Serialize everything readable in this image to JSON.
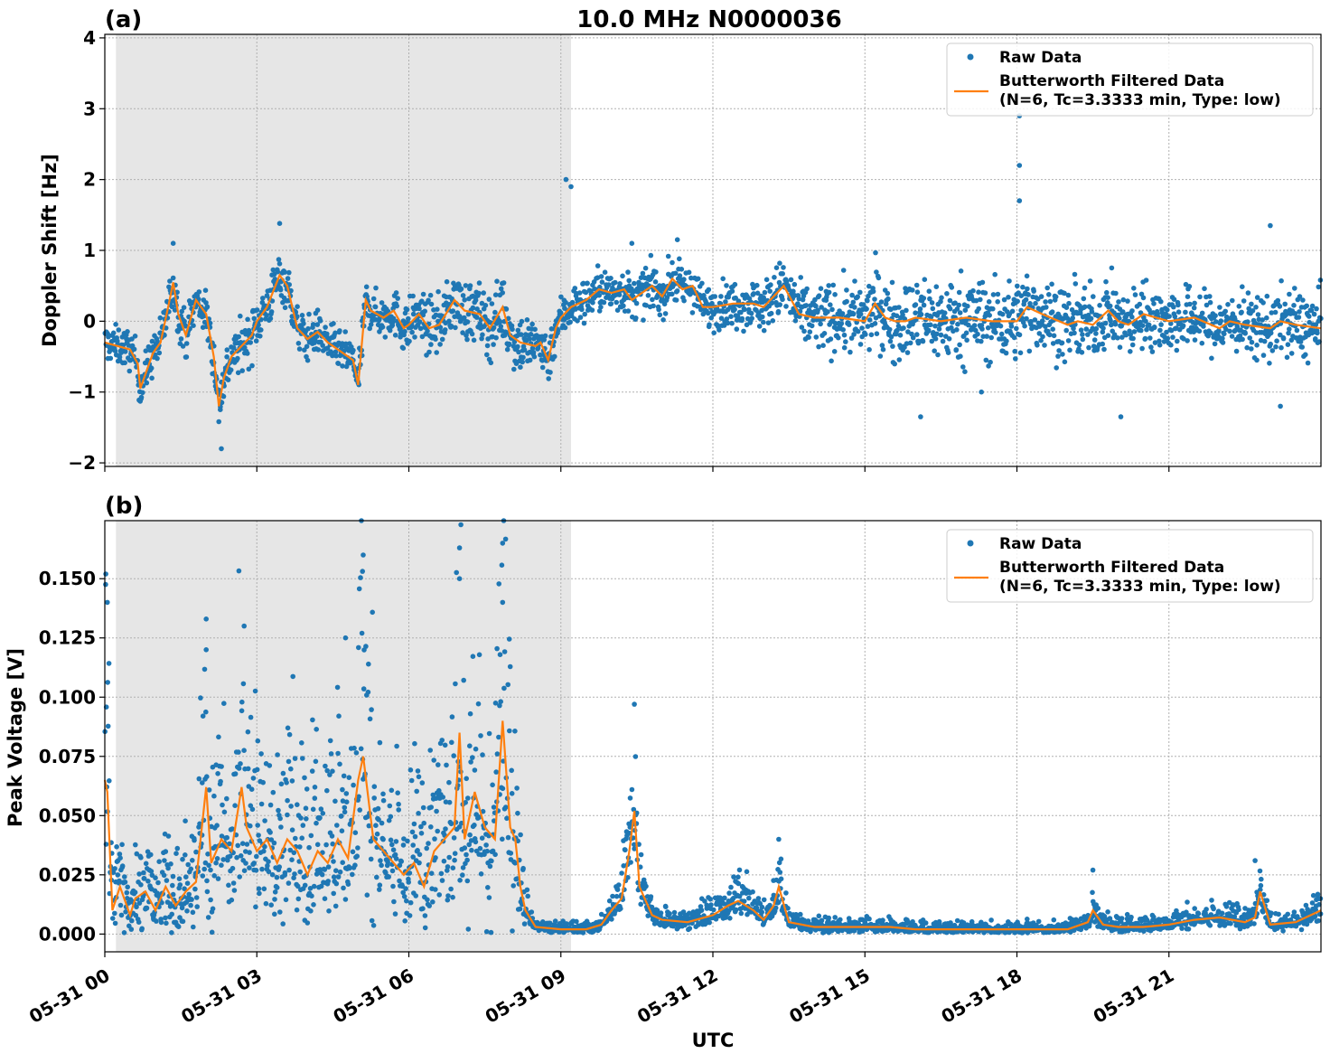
{
  "colors": {
    "raw": "#1f77b4",
    "filtered": "#ff7f0e",
    "night_shade": "#e6e6e6"
  },
  "figure": {
    "title": "10.0 MHz N0000036",
    "xlabel": "UTC"
  },
  "chart_data": [
    {
      "panel_label": "(a)",
      "type": "scatter",
      "ylabel": "Doppler Shift [Hz]",
      "xlim_hours": [
        0,
        24
      ],
      "ylim": [
        -2.05,
        4.05
      ],
      "yticks": [
        -2,
        -1,
        0,
        1,
        2,
        3,
        4
      ],
      "ytick_labels": [
        "−2",
        "−1",
        "0",
        "1",
        "2",
        "3",
        "4"
      ],
      "xticks_hours": [
        0,
        3,
        6,
        9,
        12,
        15,
        18,
        21
      ],
      "grid": true,
      "shaded_region_hours": [
        0.22,
        9.2
      ],
      "legend": {
        "placement": "upper right",
        "entries": [
          "Raw Data",
          "Butterworth Filtered Data",
          "(N=6, Tc=3.3333 min, Type: low)"
        ]
      },
      "series": [
        {
          "name": "Raw Data",
          "style": "points",
          "spread": [
            0.25,
            0.3,
            0.3,
            0.35,
            0.3,
            0.25,
            0.35,
            0.4,
            0.45,
            0.3,
            0.3,
            0.3,
            0.3,
            0.35,
            0.45,
            0.5,
            0.55,
            0.6,
            0.55,
            0.5,
            0.45,
            0.45,
            0.4,
            0.45,
            0.5
          ],
          "outliers": [
            [
              18.05,
              2.9
            ],
            [
              18.05,
              2.2
            ],
            [
              18.05,
              1.7
            ],
            [
              9.1,
              2.0
            ],
            [
              9.2,
              1.9
            ],
            [
              10.4,
              1.1
            ],
            [
              11.3,
              1.15
            ],
            [
              17.3,
              -1.0
            ],
            [
              16.1,
              -1.35
            ],
            [
              20.05,
              -1.35
            ],
            [
              23.2,
              -1.2
            ],
            [
              23.0,
              1.35
            ],
            [
              1.35,
              1.1
            ],
            [
              3.45,
              1.38
            ],
            [
              2.3,
              -1.8
            ]
          ]
        },
        {
          "name": "Butterworth Filtered Data",
          "style": "line",
          "x": [
            0.0,
            0.25,
            0.5,
            0.65,
            0.7,
            0.8,
            0.95,
            1.1,
            1.25,
            1.35,
            1.45,
            1.6,
            1.8,
            2.0,
            2.15,
            2.25,
            2.35,
            2.5,
            2.7,
            2.9,
            3.0,
            3.2,
            3.45,
            3.6,
            3.8,
            4.0,
            4.2,
            4.4,
            4.6,
            4.9,
            5.0,
            5.15,
            5.25,
            5.5,
            5.7,
            5.9,
            6.0,
            6.2,
            6.4,
            6.6,
            6.9,
            7.1,
            7.4,
            7.6,
            7.85,
            8.0,
            8.2,
            8.5,
            8.6,
            8.75,
            8.9,
            9.0,
            9.2,
            9.5,
            9.75,
            10.0,
            10.25,
            10.4,
            10.6,
            10.8,
            11.0,
            11.2,
            11.4,
            11.6,
            11.8,
            12.0,
            12.4,
            12.8,
            13.0,
            13.2,
            13.4,
            13.7,
            14.0,
            14.5,
            15.0,
            15.2,
            15.4,
            15.6,
            15.8,
            16.0,
            16.5,
            17.0,
            17.5,
            18.0,
            18.2,
            18.5,
            19.0,
            19.2,
            19.5,
            19.8,
            20.0,
            20.2,
            20.5,
            21.0,
            21.5,
            22.0,
            22.2,
            22.5,
            23.0,
            23.2,
            23.5,
            24.0
          ],
          "y": [
            -0.3,
            -0.35,
            -0.4,
            -0.6,
            -0.95,
            -0.75,
            -0.45,
            -0.3,
            0.2,
            0.55,
            0.1,
            -0.2,
            0.3,
            0.1,
            -0.5,
            -1.2,
            -0.8,
            -0.5,
            -0.35,
            -0.2,
            0.0,
            0.2,
            0.65,
            0.5,
            -0.1,
            -0.25,
            -0.15,
            -0.3,
            -0.4,
            -0.55,
            -0.9,
            0.3,
            0.15,
            0.05,
            0.15,
            -0.1,
            -0.05,
            0.1,
            -0.1,
            -0.05,
            0.3,
            0.15,
            0.1,
            -0.1,
            0.2,
            -0.2,
            -0.3,
            -0.35,
            -0.3,
            -0.55,
            -0.1,
            0.05,
            0.2,
            0.3,
            0.45,
            0.4,
            0.45,
            0.3,
            0.4,
            0.5,
            0.35,
            0.6,
            0.45,
            0.5,
            0.2,
            0.2,
            0.25,
            0.25,
            0.2,
            0.35,
            0.5,
            0.1,
            0.05,
            0.05,
            0.0,
            0.25,
            0.05,
            0.0,
            0.0,
            0.05,
            0.0,
            0.05,
            0.0,
            0.0,
            0.2,
            0.1,
            -0.05,
            0.0,
            -0.05,
            0.15,
            0.0,
            -0.05,
            0.1,
            0.0,
            0.05,
            -0.1,
            0.0,
            -0.05,
            -0.1,
            0.0,
            -0.05,
            -0.1
          ]
        }
      ]
    },
    {
      "panel_label": "(b)",
      "type": "scatter",
      "ylabel": "Peak Voltage [V]",
      "xlim_hours": [
        0,
        24
      ],
      "ylim": [
        -0.0075,
        0.1745
      ],
      "yticks": [
        0,
        0.025,
        0.05,
        0.075,
        0.1,
        0.125,
        0.15
      ],
      "ytick_labels": [
        "0.000",
        "0.025",
        "0.050",
        "0.075",
        "0.100",
        "0.125",
        "0.150"
      ],
      "xticks_hours": [
        0,
        3,
        6,
        9,
        12,
        15,
        18,
        21
      ],
      "xtick_labels": [
        "05-31 00",
        "05-31 03",
        "05-31 06",
        "05-31 09",
        "05-31 12",
        "05-31 15",
        "05-31 18",
        "05-31 21"
      ],
      "grid": true,
      "shaded_region_hours": [
        0.22,
        9.2
      ],
      "legend": {
        "placement": "upper right",
        "entries": [
          "Raw Data",
          "Butterworth Filtered Data",
          "(N=6, Tc=3.3333 min, Type: low)"
        ]
      },
      "series": [
        {
          "name": "Raw Data",
          "style": "points",
          "outliers": [
            [
              0.02,
              0.152
            ],
            [
              0.05,
              0.14
            ],
            [
              2.0,
              0.133
            ],
            [
              2.0,
              0.12
            ],
            [
              2.75,
              0.13
            ],
            [
              4.75,
              0.125
            ],
            [
              5.1,
              0.16
            ],
            [
              7.0,
              0.163
            ],
            [
              7.0,
              0.15
            ],
            [
              7.85,
              0.165
            ],
            [
              7.85,
              0.14
            ],
            [
              10.45,
              0.097
            ],
            [
              13.3,
              0.04
            ],
            [
              19.5,
              0.027
            ],
            [
              22.7,
              0.031
            ]
          ]
        },
        {
          "name": "Butterworth Filtered Data",
          "style": "line",
          "x": [
            0.0,
            0.05,
            0.15,
            0.3,
            0.5,
            0.6,
            0.8,
            1.0,
            1.2,
            1.4,
            1.6,
            1.8,
            2.0,
            2.1,
            2.3,
            2.5,
            2.7,
            2.8,
            3.0,
            3.2,
            3.4,
            3.6,
            3.8,
            4.0,
            4.2,
            4.4,
            4.6,
            4.8,
            5.0,
            5.1,
            5.3,
            5.5,
            5.7,
            5.9,
            6.1,
            6.3,
            6.5,
            6.7,
            6.9,
            7.0,
            7.1,
            7.3,
            7.5,
            7.7,
            7.85,
            8.0,
            8.1,
            8.2,
            8.3,
            8.5,
            9.0,
            9.5,
            9.8,
            10.0,
            10.2,
            10.35,
            10.45,
            10.55,
            10.8,
            11.0,
            11.5,
            12.0,
            12.3,
            12.5,
            12.8,
            13.0,
            13.2,
            13.3,
            13.5,
            14.0,
            14.5,
            15.0,
            15.5,
            16.0,
            17.0,
            18.0,
            19.0,
            19.4,
            19.5,
            19.7,
            20.0,
            20.5,
            21.0,
            21.5,
            22.0,
            22.5,
            22.7,
            22.8,
            23.0,
            23.5,
            24.0
          ],
          "y": [
            0.065,
            0.06,
            0.01,
            0.02,
            0.008,
            0.015,
            0.018,
            0.01,
            0.02,
            0.012,
            0.018,
            0.022,
            0.062,
            0.03,
            0.04,
            0.035,
            0.062,
            0.045,
            0.035,
            0.04,
            0.03,
            0.04,
            0.035,
            0.025,
            0.035,
            0.03,
            0.04,
            0.032,
            0.065,
            0.075,
            0.04,
            0.035,
            0.03,
            0.025,
            0.03,
            0.02,
            0.035,
            0.04,
            0.045,
            0.085,
            0.04,
            0.06,
            0.045,
            0.04,
            0.09,
            0.045,
            0.04,
            0.02,
            0.01,
            0.003,
            0.002,
            0.002,
            0.004,
            0.01,
            0.015,
            0.035,
            0.052,
            0.02,
            0.008,
            0.006,
            0.005,
            0.008,
            0.012,
            0.014,
            0.01,
            0.006,
            0.012,
            0.02,
            0.005,
            0.003,
            0.003,
            0.003,
            0.003,
            0.002,
            0.002,
            0.002,
            0.002,
            0.005,
            0.01,
            0.004,
            0.003,
            0.003,
            0.004,
            0.006,
            0.007,
            0.005,
            0.007,
            0.018,
            0.004,
            0.005,
            0.01
          ]
        }
      ]
    }
  ]
}
